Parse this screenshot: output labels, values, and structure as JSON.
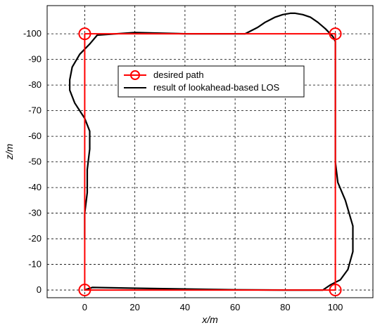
{
  "colors": {
    "desired": "#ff0000",
    "result": "#000000",
    "grid": "#000000",
    "background": "#ffffff"
  },
  "chart_data": {
    "type": "line",
    "title": "",
    "xlabel": "x/m",
    "ylabel": "z/m",
    "xlim": [
      -15,
      115
    ],
    "ylim": [
      3,
      -111
    ],
    "x_ticks": [
      0,
      20,
      40,
      60,
      80,
      100
    ],
    "y_ticks": [
      0,
      -10,
      -20,
      -30,
      -40,
      -50,
      -60,
      -70,
      -80,
      -90,
      -100
    ],
    "x_tick_labels": [
      "0",
      "20",
      "40",
      "60",
      "80",
      "100"
    ],
    "y_tick_labels": [
      "0",
      "-10",
      "-20",
      "-30",
      "-40",
      "-50",
      "-60",
      "-70",
      "-80",
      "-90",
      "-100"
    ],
    "grid": true,
    "legend_position": "upper-center",
    "series": [
      {
        "name": "desired path",
        "color": "#ff0000",
        "marker": "circle",
        "x": [
          0,
          100,
          100,
          0,
          0
        ],
        "z": [
          0,
          0,
          -100,
          -100,
          0
        ]
      },
      {
        "name": "result of lookahead-based LOS",
        "color": "#000000",
        "marker": "none",
        "x": [
          0,
          3,
          20,
          40,
          60,
          80,
          95,
          98,
          102,
          105,
          107,
          107,
          104,
          101,
          100,
          100,
          100,
          100,
          100,
          100,
          100,
          99,
          96,
          93,
          90,
          87,
          84,
          82,
          79,
          76,
          72,
          69,
          66,
          64,
          60,
          40,
          20,
          5,
          2,
          -2,
          -5,
          -6,
          -6,
          -4,
          -2,
          0,
          2,
          2,
          1,
          1,
          0,
          0
        ],
        "z": [
          0,
          -1,
          -0.7,
          -0.4,
          -0.1,
          0,
          0,
          -2,
          -4,
          -8,
          -15,
          -25,
          -35,
          -42,
          -50,
          -60,
          -70,
          -80,
          -90,
          -95,
          -97,
          -99,
          -102,
          -104.5,
          -106.5,
          -107.5,
          -108,
          -108,
          -107.5,
          -106.5,
          -104.5,
          -102.5,
          -101,
          -100,
          -100,
          -100,
          -100.5,
          -99.5,
          -96,
          -92,
          -87,
          -82,
          -78,
          -73,
          -70,
          -67,
          -62,
          -55,
          -47,
          -38,
          -30,
          -20
        ]
      }
    ]
  }
}
